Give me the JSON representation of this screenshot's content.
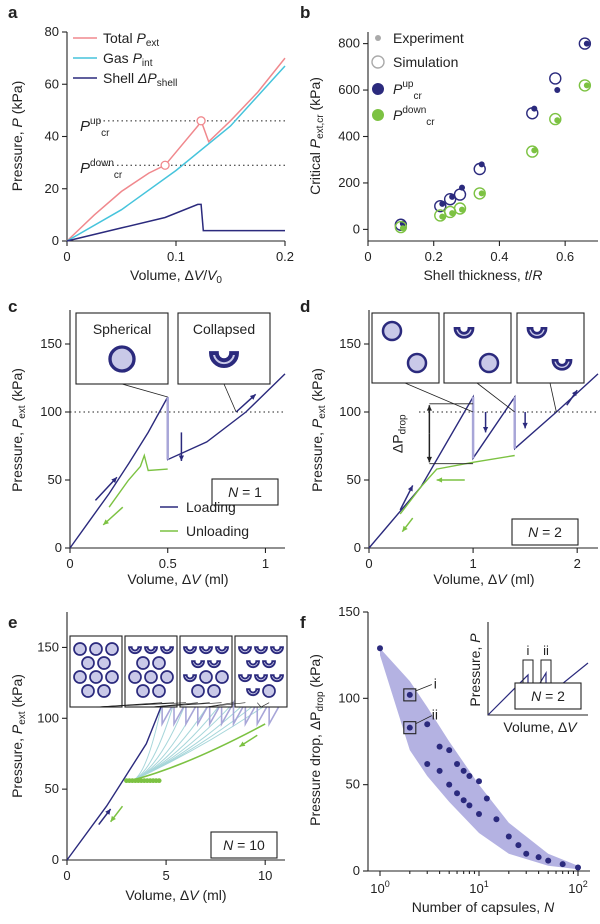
{
  "colors": {
    "navy": "#2b2a7d",
    "pink": "#f0888d",
    "cyan": "#46c4dc",
    "green": "#7cc242",
    "fill": "#c9c9e8",
    "grey": "#aaaaaa",
    "band": "#b4b2e2"
  },
  "panels": {
    "a": {
      "letter": "a",
      "ylabel": "Pressure, P (kPa)",
      "xlabel": "Volume, ΔV/V₀",
      "legend": [
        "Total P",
        "Gas P",
        "Shell ΔP"
      ],
      "legend_sub": [
        "ext",
        "int",
        "shell"
      ],
      "annot_up": "P",
      "annot_up_sup": "up",
      "annot_up_sub": "cr",
      "annot_down": "P",
      "annot_down_sup": "down",
      "annot_down_sub": "cr"
    },
    "b": {
      "letter": "b",
      "ylabel": "Critical P",
      "ylabel_sub": "ext,cr",
      "ylabel_unit": " (kPa)",
      "xlabel": "Shell thickness, t/R",
      "legend": [
        "Experiment",
        "Simulation",
        "P",
        "P"
      ],
      "legend_sup": [
        "up",
        "down"
      ],
      "legend_sub": "cr"
    },
    "c": {
      "letter": "c",
      "ylabel": "Pressure, P",
      "ylabel_sub": "ext",
      "ylabel_unit": " (kPa)",
      "xlabel": "Volume, ΔV (ml)",
      "box1": "Spherical",
      "box2": "Collapsed",
      "nlabel": "N = 1",
      "legend": [
        "Loading",
        "Unloading"
      ]
    },
    "d": {
      "letter": "d",
      "ylabel": "Pressure, P",
      "ylabel_sub": "ext",
      "ylabel_unit": " (kPa)",
      "xlabel": "Volume, ΔV (ml)",
      "dp": "ΔP",
      "dp_sub": "drop",
      "nlabel": "N = 2"
    },
    "e": {
      "letter": "e",
      "ylabel": "Pressure, P",
      "ylabel_sub": "ext",
      "ylabel_unit": " (kPa)",
      "xlabel": "Volume, ΔV (ml)",
      "nlabel": "N = 10"
    },
    "f": {
      "letter": "f",
      "ylabel": "Pressure drop, ΔP",
      "ylabel_sub": "drop",
      "ylabel_unit": " (kPa)",
      "xlabel": "Number of capsules, N",
      "inset_ylabel": "Pressure, P",
      "inset_xlabel": "Volume, ΔV",
      "inset_n": "N = 2",
      "mark_i": "i",
      "mark_ii": "ii"
    }
  },
  "chart_data": [
    {
      "type": "line",
      "panel": "a",
      "xlim": [
        0,
        0.2
      ],
      "ylim": [
        0,
        80
      ],
      "xticks": [
        0,
        0.1,
        0.2
      ],
      "yticks": [
        0,
        20,
        40,
        60,
        80
      ],
      "series": [
        {
          "name": "Total P_ext",
          "x": [
            0,
            0.025,
            0.05,
            0.075,
            0.09,
            0.12,
            0.123,
            0.13,
            0.15,
            0.175,
            0.2
          ],
          "y": [
            0,
            10,
            19,
            26,
            29,
            44,
            46,
            38,
            46,
            57,
            70
          ]
        },
        {
          "name": "Gas P_int",
          "x": [
            0,
            0.05,
            0.1,
            0.15,
            0.2
          ],
          "y": [
            0,
            12,
            27,
            44,
            67
          ]
        },
        {
          "name": "Shell ΔP_shell",
          "x": [
            0,
            0.05,
            0.09,
            0.12,
            0.123,
            0.125,
            0.15,
            0.2
          ],
          "y": [
            0,
            5,
            9,
            14,
            14,
            4,
            4,
            4
          ]
        }
      ],
      "thresholds": {
        "Pcr_up": 46,
        "Pcr_down": 29
      }
    },
    {
      "type": "scatter",
      "panel": "b",
      "xlim": [
        0,
        0.7
      ],
      "ylim": [
        -50,
        850
      ],
      "xticks": [
        0,
        0.2,
        0.4,
        0.6
      ],
      "yticks": [
        0,
        200,
        400,
        600,
        800
      ],
      "series": [
        {
          "name": "P_cr^up experiment",
          "x": [
            0.1,
            0.22,
            0.25,
            0.28,
            0.34,
            0.5,
            0.57,
            0.66
          ],
          "y": [
            25,
            110,
            140,
            180,
            280,
            520,
            600,
            800
          ]
        },
        {
          "name": "P_cr^up simulation",
          "x": [
            0.1,
            0.22,
            0.25,
            0.28,
            0.34,
            0.5,
            0.57,
            0.66
          ],
          "y": [
            20,
            100,
            130,
            150,
            260,
            500,
            650,
            800
          ]
        },
        {
          "name": "P_cr^down experiment",
          "x": [
            0.1,
            0.22,
            0.25,
            0.28,
            0.34,
            0.5,
            0.57,
            0.66
          ],
          "y": [
            5,
            55,
            70,
            85,
            155,
            340,
            470,
            620
          ]
        },
        {
          "name": "P_cr^down simulation",
          "x": [
            0.1,
            0.22,
            0.25,
            0.28,
            0.34,
            0.5,
            0.57,
            0.66
          ],
          "y": [
            10,
            60,
            75,
            90,
            155,
            335,
            475,
            620
          ]
        }
      ]
    },
    {
      "type": "line",
      "panel": "c",
      "xlim": [
        0,
        1.1
      ],
      "ylim": [
        0,
        175
      ],
      "xticks": [
        0,
        0.5,
        1
      ],
      "yticks": [
        0,
        50,
        100,
        150
      ],
      "threshold": 100,
      "series": [
        {
          "name": "Loading",
          "x": [
            0,
            0.1,
            0.2,
            0.3,
            0.4,
            0.5,
            0.5,
            0.7,
            0.9,
            1.1
          ],
          "y": [
            0,
            20,
            40,
            62,
            85,
            111,
            65,
            78,
            100,
            128
          ]
        },
        {
          "name": "Unloading",
          "x": [
            0.5,
            0.4,
            0.38,
            0.36,
            0.3,
            0.2
          ],
          "y": [
            58,
            57,
            68,
            60,
            50,
            30
          ]
        }
      ]
    },
    {
      "type": "line",
      "panel": "d",
      "xlim": [
        0,
        2.2
      ],
      "ylim": [
        0,
        175
      ],
      "xticks": [
        0,
        1,
        2
      ],
      "yticks": [
        0,
        50,
        100,
        150
      ],
      "threshold": 100,
      "series": [
        {
          "name": "Loading",
          "x": [
            0,
            0.5,
            1,
            1,
            1.4,
            1.4,
            1.8,
            2.2
          ],
          "y": [
            0,
            45,
            111,
            66,
            111,
            73,
            100,
            128
          ]
        },
        {
          "name": "Unloading",
          "x": [
            1.4,
            1,
            0.65,
            0.5,
            0.3
          ],
          "y": [
            68,
            63,
            58,
            45,
            25
          ]
        }
      ]
    },
    {
      "type": "line",
      "panel": "e",
      "xlim": [
        0,
        11
      ],
      "ylim": [
        0,
        175
      ],
      "xticks": [
        0,
        5,
        10
      ],
      "yticks": [
        0,
        50,
        100,
        150
      ],
      "series": [
        {
          "name": "Loading",
          "x": [
            0,
            2,
            4,
            4.8,
            5.5,
            6.5,
            7.5,
            8.5,
            9.5,
            10.5,
            11
          ],
          "y": [
            0,
            38,
            82,
            110,
            111,
            111,
            111,
            111,
            111,
            125,
            130
          ]
        },
        {
          "name": "Unloading",
          "x": [
            10,
            8,
            6,
            4.5,
            3.2
          ],
          "y": [
            96,
            82,
            68,
            60,
            55
          ]
        }
      ]
    },
    {
      "type": "scatter",
      "panel": "f",
      "xscale": "log",
      "xlim": [
        1,
        100
      ],
      "ylim": [
        0,
        150
      ],
      "xticks": [
        1,
        10,
        100
      ],
      "yticks": [
        0,
        50,
        100,
        150
      ],
      "series": [
        {
          "name": "ΔP_drop",
          "x": [
            1,
            2,
            2,
            3,
            3,
            4,
            4,
            5,
            5,
            6,
            6,
            7,
            7,
            8,
            8,
            10,
            10,
            12,
            15,
            20,
            25,
            30,
            40,
            50,
            70,
            100
          ],
          "y": [
            129,
            102,
            83,
            85,
            62,
            72,
            58,
            70,
            50,
            62,
            45,
            58,
            41,
            55,
            38,
            52,
            33,
            42,
            30,
            20,
            15,
            10,
            8,
            6,
            4,
            2
          ]
        }
      ],
      "labels": {
        "i": "i",
        "ii": "ii"
      }
    }
  ]
}
